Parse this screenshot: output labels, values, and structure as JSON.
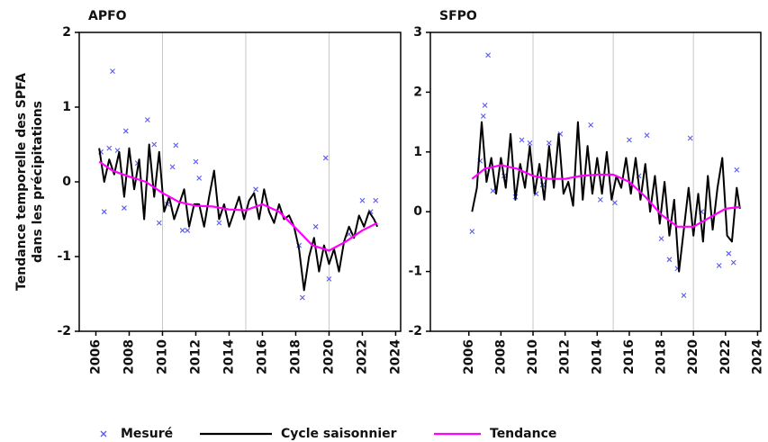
{
  "chart_data": [
    {
      "type": "line",
      "title": "APFO",
      "ylabel": [
        "Tendance temporelle des SPFA",
        "dans les précipitations"
      ],
      "xlim": [
        2005.0,
        2024.3
      ],
      "xticks": [
        2006,
        2008,
        2010,
        2012,
        2014,
        2016,
        2018,
        2020,
        2022,
        2024
      ],
      "xgrid": [
        2010,
        2015,
        2020
      ],
      "ylim": [
        -2,
        2
      ],
      "yticks": [
        -2,
        -1,
        0,
        1,
        2
      ],
      "legend": "bottom",
      "series": [
        {
          "name": "Mesuré",
          "color": "#5a5af0",
          "style": "cross",
          "x": [
            2006.3,
            2006.5,
            2006.8,
            2007.0,
            2007.3,
            2007.7,
            2007.8,
            2008.5,
            2009.1,
            2009.5,
            2009.8,
            2010.3,
            2010.6,
            2010.8,
            2011.2,
            2011.5,
            2012.0,
            2012.2,
            2013.4,
            2015.6,
            2018.2,
            2018.4,
            2019.2,
            2019.8,
            2020.0,
            2021.2,
            2022.0,
            2022.5,
            2022.8
          ],
          "values": [
            0.4,
            -0.4,
            0.45,
            1.48,
            0.42,
            -0.35,
            0.68,
            0.25,
            0.83,
            0.5,
            -0.55,
            -0.3,
            0.2,
            0.49,
            -0.65,
            -0.65,
            0.27,
            0.05,
            -0.55,
            -0.1,
            -0.85,
            -1.55,
            -0.6,
            0.32,
            -1.3,
            -0.7,
            -0.25,
            -0.4,
            -0.25
          ]
        },
        {
          "name": "Cycle saisonnier",
          "color": "#000000",
          "style": "line",
          "x": [
            2006.2,
            2006.5,
            2006.8,
            2007.1,
            2007.4,
            2007.7,
            2008.0,
            2008.3,
            2008.6,
            2008.9,
            2009.2,
            2009.5,
            2009.8,
            2010.1,
            2010.4,
            2010.7,
            2011.0,
            2011.3,
            2011.6,
            2011.9,
            2012.2,
            2012.5,
            2012.8,
            2013.1,
            2013.4,
            2013.7,
            2014.0,
            2014.3,
            2014.6,
            2014.9,
            2015.2,
            2015.5,
            2015.8,
            2016.1,
            2016.4,
            2016.7,
            2017.0,
            2017.3,
            2017.6,
            2017.9,
            2018.2,
            2018.5,
            2018.8,
            2019.1,
            2019.4,
            2019.7,
            2020.0,
            2020.3,
            2020.6,
            2020.9,
            2021.2,
            2021.5,
            2021.8,
            2022.1,
            2022.4,
            2022.7,
            2022.9
          ],
          "values": [
            0.45,
            0.0,
            0.3,
            0.1,
            0.4,
            -0.2,
            0.45,
            -0.1,
            0.3,
            -0.5,
            0.5,
            -0.2,
            0.4,
            -0.4,
            -0.2,
            -0.5,
            -0.3,
            -0.1,
            -0.6,
            -0.3,
            -0.3,
            -0.6,
            -0.2,
            0.15,
            -0.5,
            -0.3,
            -0.6,
            -0.4,
            -0.2,
            -0.5,
            -0.25,
            -0.15,
            -0.5,
            -0.1,
            -0.4,
            -0.55,
            -0.3,
            -0.5,
            -0.45,
            -0.6,
            -0.9,
            -1.45,
            -1.0,
            -0.75,
            -1.2,
            -0.85,
            -1.1,
            -0.9,
            -1.2,
            -0.8,
            -0.6,
            -0.75,
            -0.45,
            -0.6,
            -0.4,
            -0.5,
            -0.6
          ]
        },
        {
          "name": "Tendance",
          "color": "#ff00ff",
          "style": "line",
          "x": [
            2006.2,
            2007,
            2008,
            2009,
            2010,
            2011,
            2012,
            2013,
            2014,
            2015,
            2016,
            2017,
            2018,
            2019,
            2020,
            2021,
            2022,
            2022.9
          ],
          "values": [
            0.27,
            0.15,
            0.07,
            0.0,
            -0.15,
            -0.27,
            -0.32,
            -0.33,
            -0.37,
            -0.38,
            -0.3,
            -0.4,
            -0.62,
            -0.85,
            -0.92,
            -0.8,
            -0.65,
            -0.55
          ]
        }
      ]
    },
    {
      "type": "line",
      "title": "SFPO",
      "xlim": [
        2003.6,
        2024.2
      ],
      "xticks": [
        2006,
        2008,
        2010,
        2012,
        2014,
        2016,
        2018,
        2020,
        2022,
        2024
      ],
      "xgrid": [
        2010,
        2015,
        2020
      ],
      "ylim": [
        -2,
        3
      ],
      "yticks": [
        -2,
        -1,
        0,
        1,
        2,
        3
      ],
      "series": [
        {
          "color": "#5a5af0",
          "style": "cross",
          "x": [
            2006.2,
            2006.7,
            2006.9,
            2007.0,
            2007.2,
            2007.5,
            2008.2,
            2008.9,
            2009.3,
            2009.8,
            2010.2,
            2010.6,
            2011.0,
            2011.7,
            2013.6,
            2014.2,
            2015.1,
            2016.0,
            2016.6,
            2017.1,
            2018.0,
            2018.5,
            2019.0,
            2019.4,
            2019.8,
            2020.5,
            2021.6,
            2022.2,
            2022.5,
            2022.7
          ],
          "values": [
            -0.33,
            0.85,
            1.6,
            1.78,
            2.62,
            0.35,
            0.6,
            0.25,
            1.2,
            1.15,
            0.3,
            0.45,
            1.15,
            1.3,
            1.45,
            0.2,
            0.15,
            1.2,
            0.6,
            1.28,
            -0.45,
            -0.8,
            -0.95,
            -1.4,
            1.23,
            0.0,
            -0.9,
            -0.7,
            -0.85,
            0.7
          ]
        },
        {
          "color": "#000000",
          "style": "line",
          "x": [
            2006.2,
            2006.5,
            2006.8,
            2007.1,
            2007.4,
            2007.7,
            2008.0,
            2008.3,
            2008.6,
            2008.9,
            2009.2,
            2009.5,
            2009.8,
            2010.1,
            2010.4,
            2010.7,
            2011.0,
            2011.3,
            2011.6,
            2011.9,
            2012.2,
            2012.5,
            2012.8,
            2013.1,
            2013.4,
            2013.7,
            2014.0,
            2014.3,
            2014.6,
            2014.9,
            2015.2,
            2015.5,
            2015.8,
            2016.1,
            2016.4,
            2016.7,
            2017.0,
            2017.3,
            2017.6,
            2017.9,
            2018.2,
            2018.5,
            2018.8,
            2019.1,
            2019.4,
            2019.7,
            2020.0,
            2020.3,
            2020.6,
            2020.9,
            2021.2,
            2021.5,
            2021.8,
            2022.1,
            2022.4,
            2022.7,
            2022.9
          ],
          "values": [
            0.0,
            0.4,
            1.5,
            0.5,
            0.9,
            0.3,
            0.9,
            0.4,
            1.3,
            0.2,
            0.8,
            0.4,
            1.1,
            0.3,
            0.8,
            0.2,
            1.1,
            0.4,
            1.3,
            0.3,
            0.5,
            0.1,
            1.5,
            0.2,
            1.1,
            0.3,
            0.9,
            0.3,
            1.0,
            0.2,
            0.6,
            0.4,
            0.9,
            0.3,
            0.9,
            0.2,
            0.8,
            0.0,
            0.6,
            -0.2,
            0.5,
            -0.4,
            0.2,
            -1.0,
            -0.3,
            0.4,
            -0.4,
            0.3,
            -0.5,
            0.6,
            -0.3,
            0.4,
            0.9,
            -0.4,
            -0.5,
            0.4,
            0.05
          ]
        },
        {
          "color": "#ff00ff",
          "style": "line",
          "x": [
            2006.2,
            2007,
            2008,
            2009,
            2010,
            2011,
            2012,
            2013,
            2014,
            2015,
            2016,
            2017,
            2018,
            2019,
            2020,
            2021,
            2022,
            2022.9
          ],
          "values": [
            0.55,
            0.72,
            0.78,
            0.72,
            0.6,
            0.55,
            0.55,
            0.6,
            0.62,
            0.62,
            0.5,
            0.25,
            -0.05,
            -0.25,
            -0.25,
            -0.1,
            0.05,
            0.08
          ]
        }
      ]
    }
  ]
}
